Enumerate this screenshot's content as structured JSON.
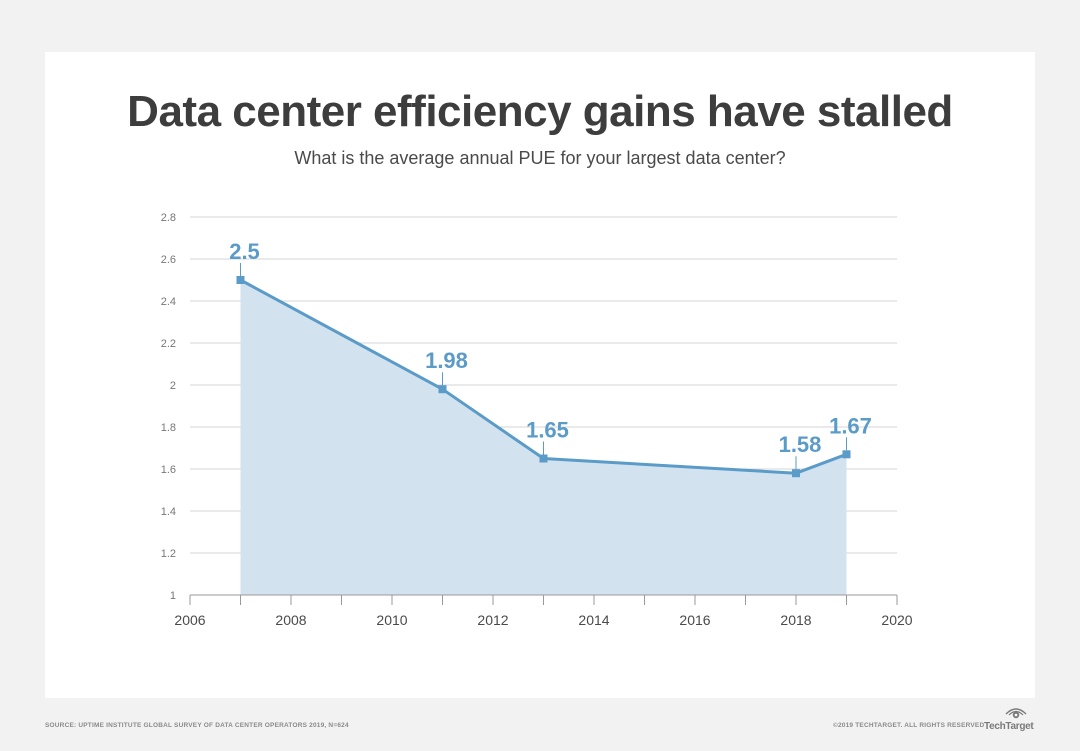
{
  "header": {
    "title": "Data center efficiency gains have stalled",
    "subtitle": "What is the average annual PUE for your largest data center?"
  },
  "footer": {
    "source": "SOURCE: UPTIME INSTITUTE GLOBAL SURVEY OF DATA CENTER OPERATORS 2019, N=624",
    "copyright": "©2019 TECHTARGET. ALL RIGHTS RESERVED",
    "logo_text": "TechTarget"
  },
  "colors": {
    "line": "#5b9bc8",
    "fill": "#d3e2ef",
    "label": "#5b9bc8",
    "grid": "#d6d6d6",
    "axis_text": "#4a4a4a",
    "tick_text": "#777777"
  },
  "chart_data": {
    "type": "area",
    "title": "Data center efficiency gains have stalled",
    "subtitle": "What is the average annual PUE for your largest data center?",
    "xlabel": "",
    "ylabel": "",
    "xlim": [
      2006,
      2020
    ],
    "ylim": [
      1,
      2.8
    ],
    "x_ticks": [
      2006,
      2008,
      2010,
      2012,
      2014,
      2016,
      2018,
      2020
    ],
    "x_tick_labels": [
      "2006",
      "2008",
      "2010",
      "2012",
      "2014",
      "2016",
      "2018",
      "2020"
    ],
    "y_ticks": [
      1,
      1.2,
      1.4,
      1.6,
      1.8,
      2,
      2.2,
      2.4,
      2.6,
      2.8
    ],
    "y_tick_labels": [
      "1",
      "1.2",
      "1.4",
      "1.6",
      "1.8",
      "2",
      "2.2",
      "2.4",
      "2.6",
      "2.8"
    ],
    "grid": true,
    "series": [
      {
        "name": "Average annual PUE",
        "x": [
          2007,
          2011,
          2013,
          2018,
          2019
        ],
        "values": [
          2.5,
          1.98,
          1.65,
          1.58,
          1.67
        ],
        "labels": [
          "2.5",
          "1.98",
          "1.65",
          "1.58",
          "1.67"
        ]
      }
    ]
  }
}
